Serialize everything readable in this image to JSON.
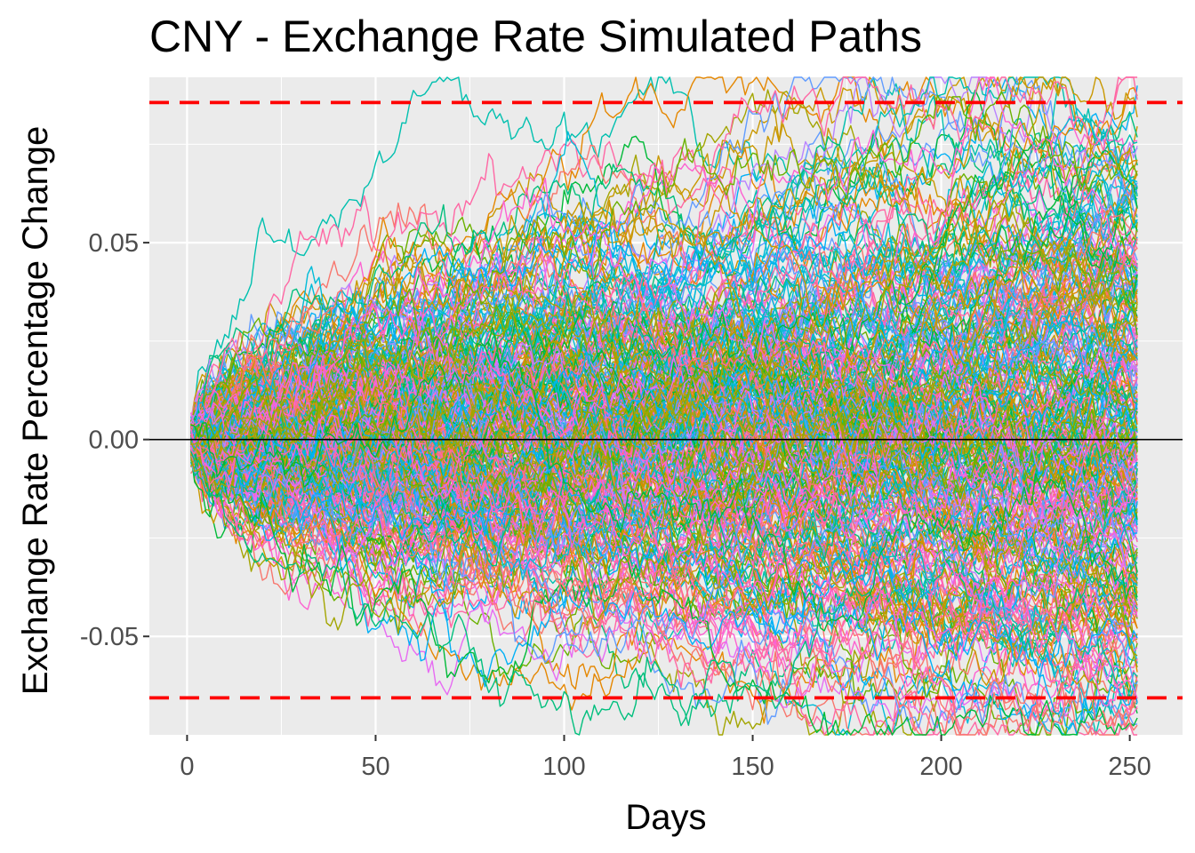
{
  "chart_data": {
    "type": "line",
    "title": "CNY - Exchange Rate Simulated Paths",
    "xlabel": "Days",
    "ylabel": "Exchange Rate Percentage Change",
    "xlim": [
      -10,
      264
    ],
    "ylim": [
      -0.075,
      0.092
    ],
    "x_ticks": [
      0,
      50,
      100,
      150,
      200,
      250
    ],
    "x_tick_labels": [
      "0",
      "50",
      "100",
      "150",
      "200",
      "250"
    ],
    "y_ticks": [
      -0.05,
      0.0,
      0.05
    ],
    "y_tick_labels": [
      "-0.05",
      "0.00",
      "0.05"
    ],
    "grid": true,
    "legend": "none",
    "n_days": 252,
    "n_paths_shown": 320,
    "daily_volatility": 0.0028,
    "reference_lines": [
      {
        "y": 0.0,
        "style": "solid",
        "color": "#000000"
      },
      {
        "y": 0.0856,
        "style": "dashed",
        "color": "#ff0000"
      },
      {
        "y": -0.0656,
        "style": "dashed",
        "color": "#ff0000"
      }
    ],
    "series_palette": [
      "#f8766d",
      "#e58700",
      "#c99800",
      "#a3a500",
      "#6bb100",
      "#00ba38",
      "#00bf7d",
      "#00c0af",
      "#00bcd8",
      "#00b0f6",
      "#619cff",
      "#b983ff",
      "#e76bf3",
      "#fd61d1",
      "#ff67a4"
    ]
  }
}
